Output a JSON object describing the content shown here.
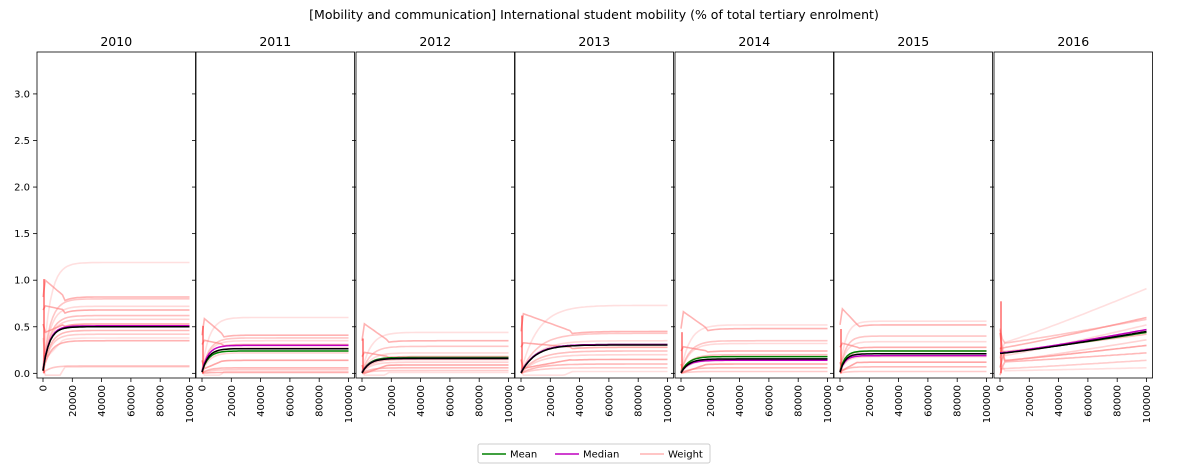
{
  "figure": {
    "title": "[Mobility and communication] International student mobility (% of total tertiary enrolment)"
  },
  "legend": {
    "placement": "bottom-center",
    "entries": [
      {
        "key": "mean",
        "label": "Mean",
        "color": "#008000"
      },
      {
        "key": "median",
        "label": "Median",
        "color": "#bf00bf"
      },
      {
        "key": "weight",
        "label": "Weight",
        "color": "#ffb3b3"
      }
    ]
  },
  "chart_data": {
    "type": "line",
    "x_ticks": [
      0,
      20000,
      40000,
      60000,
      80000,
      100000
    ],
    "x_tick_labels": [
      "0",
      "20000",
      "40000",
      "60000",
      "80000",
      "100000"
    ],
    "xlim": [
      0,
      100000
    ],
    "y_ticks": [
      0.0,
      0.5,
      1.0,
      1.5,
      2.0,
      2.5,
      3.0
    ],
    "y_tick_labels": [
      "0.0",
      "0.5",
      "1.0",
      "1.5",
      "2.0",
      "2.5",
      "3.0"
    ],
    "ylim": [
      -0.05,
      3.45
    ],
    "sharey": true,
    "grid": false,
    "colors": {
      "mean": "#008000",
      "median": "#bf00bf",
      "weight": "#ff8080",
      "black": "#000000"
    },
    "panels": [
      {
        "title": "2010",
        "mean": 0.5,
        "median": 0.51,
        "weights": [
          1.19,
          0.82,
          0.8,
          0.72,
          0.68,
          0.62,
          0.58,
          0.53,
          0.46,
          0.42,
          0.38,
          0.35,
          0.08,
          0.07
        ],
        "plateau_x": 15000
      },
      {
        "title": "2011",
        "mean": 0.24,
        "median": 0.3,
        "weights": [
          0.6,
          0.41,
          0.38,
          0.35,
          0.31,
          0.27,
          0.22,
          0.14,
          0.06,
          0.04,
          0.02,
          0.01
        ],
        "plateau_x": 15000
      },
      {
        "title": "2012",
        "mean": 0.17,
        "median": 0.16,
        "weights": [
          0.44,
          0.35,
          0.29,
          0.22,
          0.18,
          0.15,
          0.12,
          0.09,
          0.06,
          0.03,
          0.01
        ],
        "plateau_x": 18000
      },
      {
        "title": "2013",
        "mean": 0.31,
        "median": 0.31,
        "weights": [
          0.73,
          0.45,
          0.43,
          0.35,
          0.28,
          0.24,
          0.2,
          0.15,
          0.1,
          0.06,
          0.02
        ],
        "plateau_x": 35000
      },
      {
        "title": "2014",
        "mean": 0.18,
        "median": 0.14,
        "weights": [
          0.52,
          0.48,
          0.35,
          0.32,
          0.24,
          0.2,
          0.14,
          0.1,
          0.06,
          0.02
        ],
        "plateau_x": 18000
      },
      {
        "title": "2015",
        "mean": 0.24,
        "median": 0.19,
        "weights": [
          0.56,
          0.52,
          0.4,
          0.34,
          0.28,
          0.24,
          0.18,
          0.12,
          0.07,
          0.02
        ],
        "plateau_x": 12000
      },
      {
        "title": "2016",
        "mean": 0.44,
        "median": 0.47,
        "weights": [
          0.91,
          0.6,
          0.58,
          0.52,
          0.47,
          0.42,
          0.36,
          0.3,
          0.22,
          0.14,
          0.06
        ],
        "plateau_x": 0,
        "rising": true
      }
    ]
  }
}
